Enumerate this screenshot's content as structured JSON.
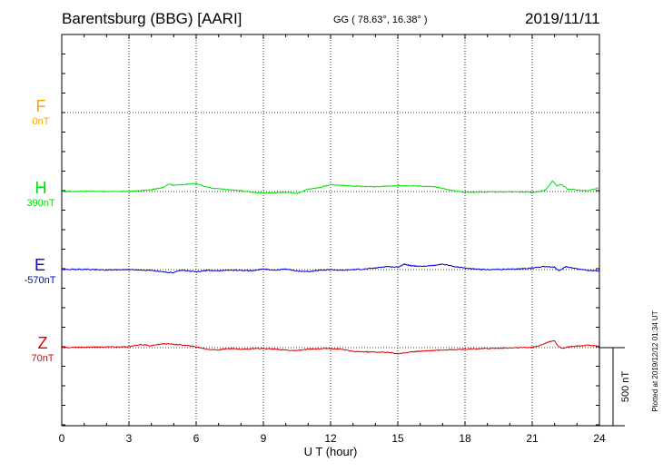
{
  "header": {
    "station": "Barentsburg (BBG)  [AARI]",
    "coords": "GG ( 78.63°,  16.38° )",
    "date": "2019/11/11"
  },
  "side_note": "Plotted at 2019/12/12 01:34 UT",
  "chart_data": {
    "type": "line",
    "xlabel": "U T (hour)",
    "xlim": [
      0,
      24
    ],
    "xticks": [
      "0",
      "3",
      "6",
      "9",
      "12",
      "15",
      "18",
      "21",
      "24"
    ],
    "scale_bar_label": "500 nT",
    "grid": true,
    "series": [
      {
        "name": "F",
        "offset_label": "0nT",
        "color": "#FFA500",
        "baseline": null,
        "points": []
      },
      {
        "name": "H",
        "offset_label": "390nT",
        "color": "#00E000",
        "baseline": 0,
        "points": [
          [
            0,
            0
          ],
          [
            1,
            1
          ],
          [
            2,
            0
          ],
          [
            3,
            2
          ],
          [
            3.5,
            5
          ],
          [
            4,
            12
          ],
          [
            4.5,
            25
          ],
          [
            4.8,
            48
          ],
          [
            5,
            40
          ],
          [
            5.5,
            45
          ],
          [
            6,
            52
          ],
          [
            6.3,
            35
          ],
          [
            6.8,
            20
          ],
          [
            7.5,
            10
          ],
          [
            8,
            5
          ],
          [
            8.5,
            -5
          ],
          [
            9,
            -10
          ],
          [
            9.5,
            -8
          ],
          [
            10,
            -5
          ],
          [
            10.5,
            -12
          ],
          [
            11,
            15
          ],
          [
            11.5,
            25
          ],
          [
            12,
            45
          ],
          [
            12.5,
            40
          ],
          [
            13,
            35
          ],
          [
            14,
            30
          ],
          [
            15,
            38
          ],
          [
            16,
            35
          ],
          [
            16.7,
            30
          ],
          [
            17,
            20
          ],
          [
            17.5,
            5
          ],
          [
            18,
            -5
          ],
          [
            19,
            -3
          ],
          [
            20,
            -2
          ],
          [
            21,
            -5
          ],
          [
            21.4,
            2
          ],
          [
            21.6,
            10
          ],
          [
            21.8,
            45
          ],
          [
            21.9,
            70
          ],
          [
            22.1,
            35
          ],
          [
            22.3,
            45
          ],
          [
            22.6,
            15
          ],
          [
            23,
            10
          ],
          [
            23.5,
            5
          ],
          [
            24,
            25
          ]
        ]
      },
      {
        "name": "E",
        "offset_label": "-570nT",
        "color": "#0000D0",
        "baseline": 0,
        "points": [
          [
            0,
            0
          ],
          [
            1,
            2
          ],
          [
            2,
            -2
          ],
          [
            3,
            0
          ],
          [
            4,
            -5
          ],
          [
            4.5,
            -15
          ],
          [
            5,
            -20
          ],
          [
            5.3,
            -5
          ],
          [
            5.7,
            -10
          ],
          [
            6,
            -15
          ],
          [
            6.5,
            -5
          ],
          [
            7,
            -8
          ],
          [
            7.5,
            -3
          ],
          [
            8,
            -5
          ],
          [
            8.5,
            -8
          ],
          [
            9,
            5
          ],
          [
            9.5,
            -5
          ],
          [
            10,
            5
          ],
          [
            10.5,
            -10
          ],
          [
            11,
            -12
          ],
          [
            11.5,
            -5
          ],
          [
            12,
            0
          ],
          [
            12.5,
            -5
          ],
          [
            13,
            0
          ],
          [
            13.5,
            3
          ],
          [
            14,
            10
          ],
          [
            14.5,
            20
          ],
          [
            15,
            15
          ],
          [
            15.3,
            35
          ],
          [
            15.6,
            25
          ],
          [
            16,
            20
          ],
          [
            16.5,
            25
          ],
          [
            17,
            35
          ],
          [
            17.5,
            20
          ],
          [
            18,
            10
          ],
          [
            18.5,
            2
          ],
          [
            19,
            0
          ],
          [
            20,
            2
          ],
          [
            20.5,
            5
          ],
          [
            21,
            10
          ],
          [
            21.5,
            20
          ],
          [
            22,
            15
          ],
          [
            22.2,
            -10
          ],
          [
            22.5,
            20
          ],
          [
            23,
            5
          ],
          [
            23.5,
            -5
          ],
          [
            24,
            -10
          ]
        ]
      },
      {
        "name": "Z",
        "offset_label": "70nT",
        "color": "#E00000",
        "baseline": 0,
        "points": [
          [
            0,
            0
          ],
          [
            1,
            3
          ],
          [
            2,
            5
          ],
          [
            3,
            5
          ],
          [
            3.5,
            20
          ],
          [
            4,
            12
          ],
          [
            4.5,
            25
          ],
          [
            5,
            22
          ],
          [
            5.5,
            15
          ],
          [
            6,
            5
          ],
          [
            6.5,
            -10
          ],
          [
            7,
            -15
          ],
          [
            7.5,
            -5
          ],
          [
            8,
            -10
          ],
          [
            8.5,
            -8
          ],
          [
            9,
            -5
          ],
          [
            10,
            -15
          ],
          [
            10.5,
            -20
          ],
          [
            11,
            -10
          ],
          [
            12,
            -5
          ],
          [
            12.5,
            -10
          ],
          [
            13,
            -25
          ],
          [
            14,
            -28
          ],
          [
            14.5,
            -30
          ],
          [
            15,
            -38
          ],
          [
            15.5,
            -30
          ],
          [
            16,
            -22
          ],
          [
            17,
            -15
          ],
          [
            18,
            -10
          ],
          [
            19,
            -5
          ],
          [
            20,
            -2
          ],
          [
            21,
            2
          ],
          [
            21.3,
            12
          ],
          [
            21.7,
            35
          ],
          [
            22,
            45
          ],
          [
            22.1,
            20
          ],
          [
            22.3,
            -5
          ],
          [
            22.6,
            5
          ],
          [
            23,
            10
          ],
          [
            23.5,
            15
          ],
          [
            24,
            10
          ]
        ]
      }
    ]
  }
}
